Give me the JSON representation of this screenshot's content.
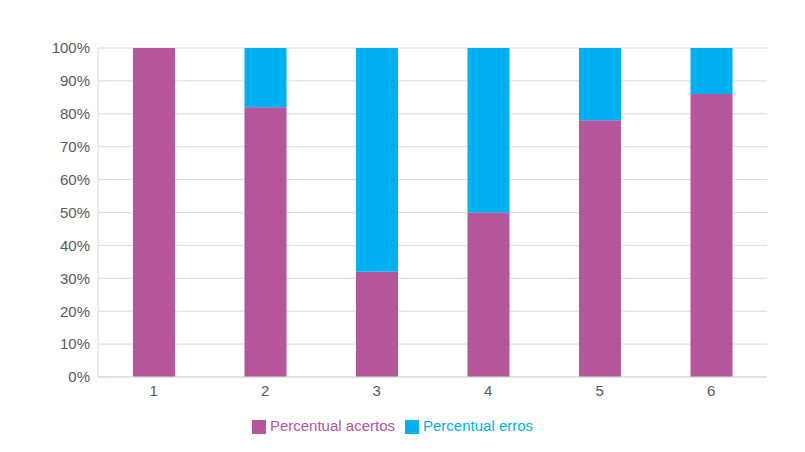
{
  "chart_data": {
    "type": "bar",
    "categories": [
      "1",
      "2",
      "3",
      "4",
      "5",
      "6"
    ],
    "series": [
      {
        "name": "Percentual acertos",
        "color": "#b5559b",
        "values": [
          100,
          82,
          32,
          50,
          78,
          86
        ]
      },
      {
        "name": "Percentual erros",
        "color": "#00b0f0",
        "values": [
          0,
          18,
          68,
          50,
          22,
          14
        ]
      }
    ],
    "stacked": true,
    "ylim": [
      0,
      100
    ],
    "yticks": [
      {
        "value": 0,
        "label": "0%"
      },
      {
        "value": 10,
        "label": "10%"
      },
      {
        "value": 20,
        "label": "20%"
      },
      {
        "value": 30,
        "label": "30%"
      },
      {
        "value": 40,
        "label": "40%"
      },
      {
        "value": 50,
        "label": "50%"
      },
      {
        "value": 60,
        "label": "60%"
      },
      {
        "value": 70,
        "label": "70%"
      },
      {
        "value": 80,
        "label": "80%"
      },
      {
        "value": 90,
        "label": "90%"
      },
      {
        "value": 100,
        "label": "100%"
      }
    ],
    "grid": true,
    "legend": "bottom"
  }
}
